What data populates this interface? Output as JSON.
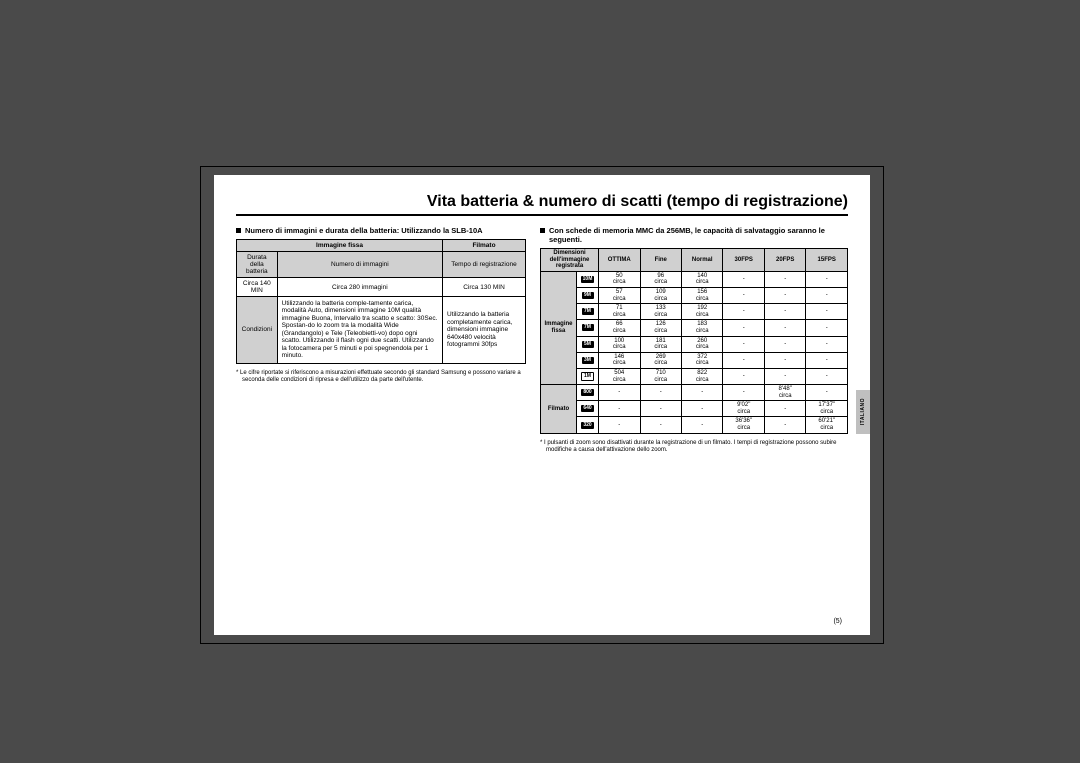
{
  "title": "Vita batteria & numero di scatti (tempo di registrazione)",
  "left": {
    "heading": "Numero di immagini e durata della batteria:  Utilizzando la  SLB-10A",
    "headers": {
      "h1": "Immagine fissa",
      "h2": "Filmato"
    },
    "row1": {
      "c1": "Durata della batteria",
      "c2": "Numero di immagini",
      "c3": "Tempo di registrazione"
    },
    "row2": {
      "c1": "Circa 140 MIN",
      "c2": "Circa 280 immagini",
      "c3": "Circa 130 MIN"
    },
    "row3": {
      "c1": "Condizioni",
      "c2": "Utilizzando la batteria comple-tamente carica, modalità Auto, dimensioni immagine 10M qualità immagine Buona, Intervallo tra scatto e scatto: 30Sec. Spostan-do lo zoom tra la modalità Wide (Grandangolo) e Tele (Teleobietti-vo) dopo ogni scatto. Utilizzando il flash ogni due scatti. Utilizzando la fotocamera per 5 minuti e poi spegnendola per 1 minuto.",
      "c3": "Utilizzando la batteria completamente carica, dimensioni immagine 640x480 velocità fotogrammi 30fps"
    },
    "footnote": "* Le cifre riportate si riferiscono a misurazioni effettuate secondo gli standard Samsung e possono variare a seconda delle condizioni di ripresa e dell'utilizzo da parte dell'utente."
  },
  "right": {
    "heading": "Con schede di memoria MMC da 256MB, le capacità di salvataggio saranno le seguenti.",
    "headers": {
      "dim": "Dimensioni dell'immagine registrata",
      "ottima": "OTTIMA",
      "fine": "Fine",
      "normal": "Normal",
      "fps30": "30FPS",
      "fps20": "20FPS",
      "fps15": "15FPS"
    },
    "group_still": "Immagine fissa",
    "group_movie": "Filmato",
    "still_rows": [
      {
        "icon": "10M",
        "iconWhite": false,
        "ottima": "50 circa",
        "fine": "96 circa",
        "normal": "140 circa",
        "f30": "-",
        "f20": "-",
        "f15": "-"
      },
      {
        "icon": "9M",
        "iconWhite": false,
        "ottima": "57 circa",
        "fine": "109 circa",
        "normal": "156 circa",
        "f30": "-",
        "f20": "-",
        "f15": "-"
      },
      {
        "icon": "7M",
        "iconWhite": false,
        "ottima": "71 circa",
        "fine": "133 circa",
        "normal": "192 circa",
        "f30": "-",
        "f20": "-",
        "f15": "-"
      },
      {
        "icon": "7M",
        "iconWhite": false,
        "ottima": "66 circa",
        "fine": "126 circa",
        "normal": "183 circa",
        "f30": "-",
        "f20": "-",
        "f15": "-"
      },
      {
        "icon": "5M",
        "iconWhite": false,
        "ottima": "100 circa",
        "fine": "181 circa",
        "normal": "260 circa",
        "f30": "-",
        "f20": "-",
        "f15": "-"
      },
      {
        "icon": "3M",
        "iconWhite": false,
        "ottima": "146 circa",
        "fine": "269 circa",
        "normal": "372 circa",
        "f30": "-",
        "f20": "-",
        "f15": "-"
      },
      {
        "icon": "1M",
        "iconWhite": true,
        "ottima": "504 circa",
        "fine": "710 circa",
        "normal": "822 circa",
        "f30": "-",
        "f20": "-",
        "f15": "-"
      }
    ],
    "movie_rows": [
      {
        "icon": "800",
        "ottima": "-",
        "fine": "-",
        "normal": "-",
        "f30": "-",
        "f20": "8'48\" circa",
        "f15": "-"
      },
      {
        "icon": "640",
        "ottima": "-",
        "fine": "-",
        "normal": "-",
        "f30": "9'02\" circa",
        "f20": "-",
        "f15": "17'37\" circa"
      },
      {
        "icon": "320",
        "ottima": "-",
        "fine": "-",
        "normal": "-",
        "f30": "36'36\" circa",
        "f20": "-",
        "f15": "60'21\" circa"
      }
    ],
    "footnote": "* I pulsanti di zoom sono disattivati durante la registrazione di un filmato. I tempi di registrazione possono subire modifiche a causa dell'attivazione dello zoom."
  },
  "pageNumber": "(5)",
  "sideTab": "ITALIANO"
}
